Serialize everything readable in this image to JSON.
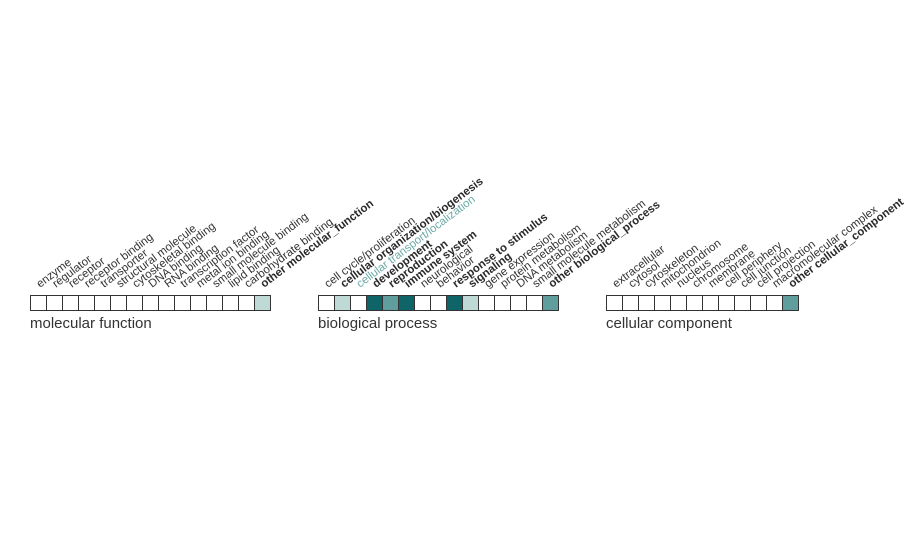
{
  "colors": {
    "none": "#ffffff",
    "light": "#bfdad6",
    "mid": "#5f9e9c",
    "dark": "#0e6466",
    "label_teal": "#6aa9a6",
    "border": "#333333",
    "text": "#333333"
  },
  "groups": [
    {
      "title": "molecular function",
      "terms": [
        {
          "label": "enzyme",
          "level": "none"
        },
        {
          "label": "regulator",
          "level": "none"
        },
        {
          "label": "receptor",
          "level": "none"
        },
        {
          "label": "receptor binding",
          "level": "none"
        },
        {
          "label": "transporter",
          "level": "none"
        },
        {
          "label": "structural molecule",
          "level": "none"
        },
        {
          "label": "cytoskeletal binding",
          "level": "none"
        },
        {
          "label": "DNA binding",
          "level": "none"
        },
        {
          "label": "RNA binding",
          "level": "none"
        },
        {
          "label": "transcription factor",
          "level": "none"
        },
        {
          "label": "metal ion binding",
          "level": "none"
        },
        {
          "label": "small molecule binding",
          "level": "none"
        },
        {
          "label": "lipid binding",
          "level": "none"
        },
        {
          "label": "carbohydrate binding",
          "level": "none"
        },
        {
          "label": "other molecular_function",
          "level": "light",
          "style": "bold"
        }
      ]
    },
    {
      "title": "biological process",
      "terms": [
        {
          "label": "cell cycle/proliferation",
          "level": "none"
        },
        {
          "label": "cellular organization/biogenesis",
          "level": "light",
          "style": "bold"
        },
        {
          "label": "cellular transport/localization",
          "level": "none",
          "style": "teal"
        },
        {
          "label": "development",
          "level": "dark",
          "style": "bold"
        },
        {
          "label": "reproduction",
          "level": "mid",
          "style": "bold"
        },
        {
          "label": "immune system",
          "level": "dark",
          "style": "bold"
        },
        {
          "label": "neurological",
          "level": "none"
        },
        {
          "label": "behavior",
          "level": "none"
        },
        {
          "label": "response to stimulus",
          "level": "dark",
          "style": "bold"
        },
        {
          "label": "signaling",
          "level": "light",
          "style": "bold"
        },
        {
          "label": "gene expression",
          "level": "none"
        },
        {
          "label": "protein metabolism",
          "level": "none"
        },
        {
          "label": "DNA metabolism",
          "level": "none"
        },
        {
          "label": "small molecule metabolism",
          "level": "none"
        },
        {
          "label": "other biological_process",
          "level": "mid",
          "style": "bold"
        }
      ]
    },
    {
      "title": "cellular component",
      "terms": [
        {
          "label": "extracellular",
          "level": "none"
        },
        {
          "label": "cytosol",
          "level": "none"
        },
        {
          "label": "cytoskeleton",
          "level": "none"
        },
        {
          "label": "mitochondrion",
          "level": "none"
        },
        {
          "label": "nucleus",
          "level": "none"
        },
        {
          "label": "chromosome",
          "level": "none"
        },
        {
          "label": "membrane",
          "level": "none"
        },
        {
          "label": "cell periphery",
          "level": "none"
        },
        {
          "label": "cell junction",
          "level": "none"
        },
        {
          "label": "cell projection",
          "level": "none"
        },
        {
          "label": "macromolecular complex",
          "level": "none"
        },
        {
          "label": "other cellular_component",
          "level": "mid",
          "style": "bold"
        }
      ]
    }
  ]
}
